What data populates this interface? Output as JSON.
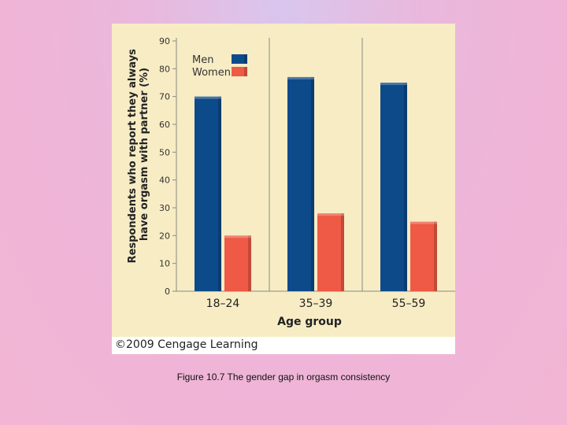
{
  "figure": {
    "copyright": "©2009 Cengage Learning",
    "caption": "Figure 10.7 The gender gap in orgasm consistency"
  },
  "chart_data": {
    "type": "bar",
    "categories": [
      "18–24",
      "35–39",
      "55–59"
    ],
    "series": [
      {
        "name": "Men",
        "values": [
          70,
          77,
          75
        ]
      },
      {
        "name": "Women",
        "values": [
          20,
          28,
          25
        ]
      }
    ],
    "title": "",
    "xlabel": "Age group",
    "ylabel_lines": [
      "Respondents who report they always",
      "have orgasm with partner (%)"
    ],
    "ylim": [
      0,
      90
    ],
    "yticks": [
      0,
      10,
      20,
      30,
      40,
      50,
      60,
      70,
      80,
      90
    ],
    "grid": "vertical category separators",
    "legend": "top-left",
    "colors": {
      "Men": "#0d4a8a",
      "Women": "#ee5a45"
    }
  }
}
